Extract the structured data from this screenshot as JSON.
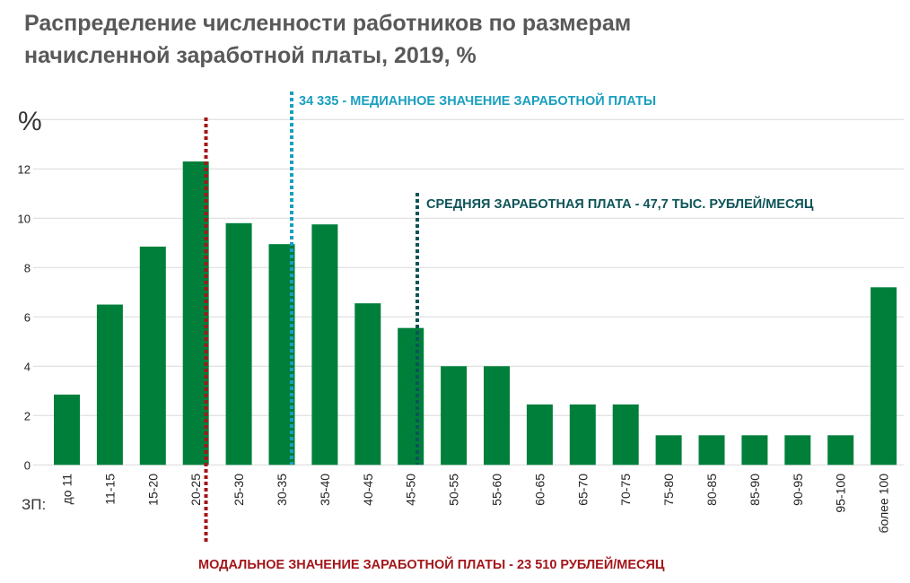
{
  "chart_data": {
    "type": "bar",
    "title_line1": "Распределение численности работников по размерам",
    "title_line2": "начисленной заработной платы, 2019, %",
    "ylabel": "%",
    "xlabel": "ЗП:",
    "ylim": [
      0,
      14
    ],
    "yticks": [
      "0",
      "2",
      "4",
      "6",
      "8",
      "10",
      "12"
    ],
    "grid": true,
    "bar_color": "#007f3b",
    "categories": [
      "до 11",
      "11-15",
      "15-20",
      "20-25",
      "25-30",
      "30-35",
      "35-40",
      "40-45",
      "45-50",
      "50-55",
      "55-60",
      "60-65",
      "65-70",
      "70-75",
      "75-80",
      "80-85",
      "85-90",
      "90-95",
      "95-100",
      "более 100"
    ],
    "values": [
      2.85,
      6.5,
      8.85,
      12.3,
      9.8,
      8.95,
      9.75,
      6.55,
      5.55,
      4.0,
      4.0,
      2.45,
      2.45,
      2.45,
      1.2,
      1.2,
      1.2,
      1.2,
      1.2,
      7.2
    ],
    "annotations": {
      "median": {
        "label": "34 335 - МЕДИАННОЕ ЗНАЧЕНИЕ ЗАРАБОТНОЙ ПЛАТЫ",
        "color": "#1a9fc0"
      },
      "mean": {
        "label": "СРЕДНЯЯ ЗАРАБОТНАЯ ПЛАТА - 47,7 ТЫС. РУБЛЕЙ/МЕСЯЦ",
        "color": "#0d5458"
      },
      "mode": {
        "label": "МОДАЛЬНОЕ ЗНАЧЕНИЕ ЗАРАБОТНОЙ ПЛАТЫ - 23 510 РУБЛЕЙ/МЕСЯЦ",
        "color": "#a3161a"
      }
    }
  }
}
